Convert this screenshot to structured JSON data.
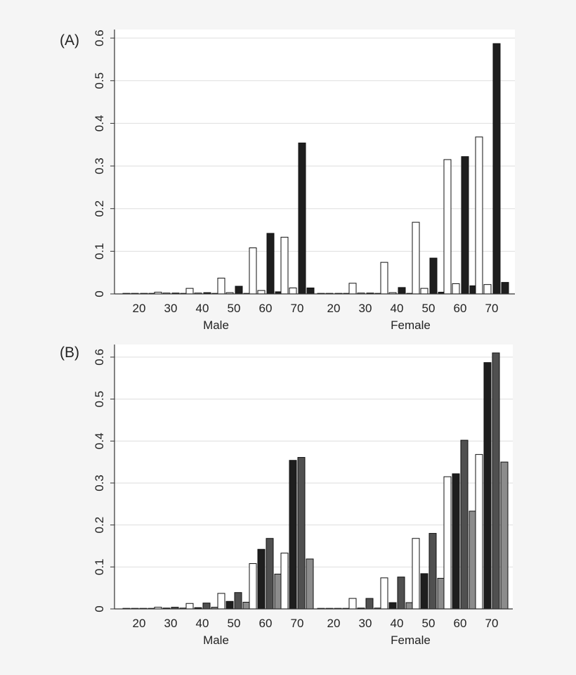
{
  "chart_data": [
    {
      "type": "bar",
      "panel_label": "(A)",
      "ylim": [
        0,
        0.62
      ],
      "yticks": [
        "0",
        "0.1",
        "0.2",
        "0.3",
        "0.4",
        "0.5",
        "0.6"
      ],
      "ytick_values": [
        0,
        0.1,
        0.2,
        0.3,
        0.4,
        0.5,
        0.6
      ],
      "grid": true,
      "groups": [
        "Male",
        "Female"
      ],
      "categories": [
        "20",
        "30",
        "40",
        "50",
        "60",
        "70"
      ],
      "series": [
        {
          "fill": "#ffffff",
          "male": [
            0.0,
            0.004,
            0.013,
            0.037,
            0.108,
            0.133
          ],
          "female": [
            0.0,
            0.025,
            0.074,
            0.168,
            0.315,
            0.368
          ]
        },
        {
          "fill": "#ffffff",
          "male": [
            0.0,
            0.002,
            0.002,
            0.003,
            0.008,
            0.014
          ],
          "female": [
            0.0,
            0.002,
            0.003,
            0.013,
            0.024,
            0.022
          ]
        },
        {
          "fill": "#1e1e1e",
          "male": [
            0.0,
            0.002,
            0.003,
            0.018,
            0.142,
            0.354
          ],
          "female": [
            0.0,
            0.002,
            0.015,
            0.084,
            0.322,
            0.587
          ]
        },
        {
          "fill": "#1e1e1e",
          "male": [
            0.0,
            0.0,
            0.001,
            0.001,
            0.005,
            0.014
          ],
          "female": [
            0.0,
            0.0,
            0.001,
            0.004,
            0.019,
            0.027
          ]
        }
      ]
    },
    {
      "type": "bar",
      "panel_label": "(B)",
      "ylim": [
        0,
        0.63
      ],
      "yticks": [
        "0",
        "0.1",
        "0.2",
        "0.3",
        "0.4",
        "0.5",
        "0.6"
      ],
      "ytick_values": [
        0,
        0.1,
        0.2,
        0.3,
        0.4,
        0.5,
        0.6
      ],
      "grid": true,
      "groups": [
        "Male",
        "Female"
      ],
      "categories": [
        "20",
        "30",
        "40",
        "50",
        "60",
        "70"
      ],
      "series": [
        {
          "fill": "#ffffff",
          "male": [
            0.0,
            0.004,
            0.013,
            0.037,
            0.108,
            0.133
          ],
          "female": [
            0.0,
            0.025,
            0.074,
            0.168,
            0.315,
            0.368
          ]
        },
        {
          "fill": "#1e1e1e",
          "male": [
            0.0,
            0.002,
            0.003,
            0.018,
            0.142,
            0.354
          ],
          "female": [
            0.0,
            0.002,
            0.015,
            0.084,
            0.322,
            0.587
          ]
        },
        {
          "fill": "#505050",
          "male": [
            0.0,
            0.004,
            0.014,
            0.039,
            0.168,
            0.361
          ],
          "female": [
            0.0,
            0.025,
            0.076,
            0.18,
            0.402,
            0.61
          ]
        },
        {
          "fill": "#8c8c8c",
          "male": [
            0.0,
            0.002,
            0.004,
            0.016,
            0.083,
            0.119
          ],
          "female": [
            0.0,
            0.002,
            0.015,
            0.073,
            0.233,
            0.35
          ]
        }
      ]
    }
  ]
}
